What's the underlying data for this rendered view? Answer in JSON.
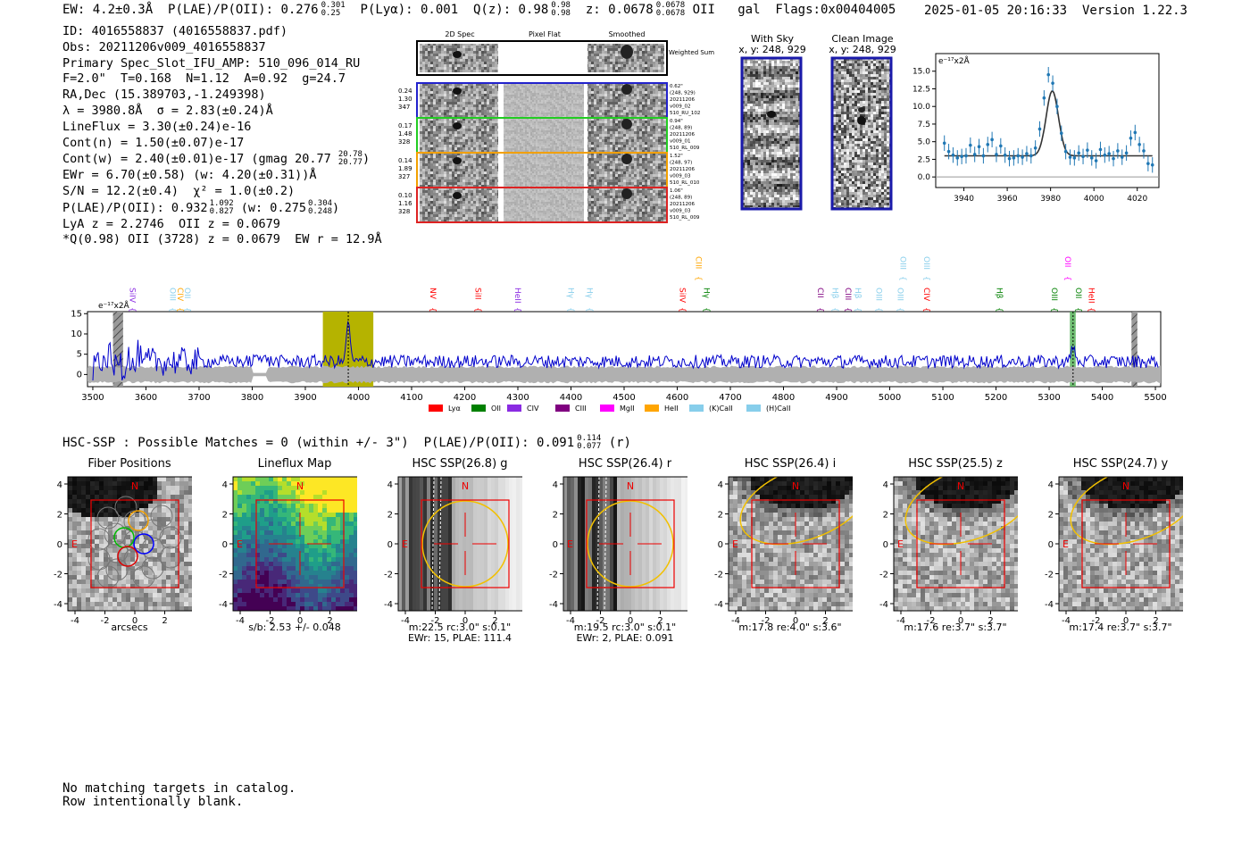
{
  "header": {
    "ew": "EW: 4.2±0.3Å",
    "plae": "P(LAE)/P(OII): 0.276",
    "plae_hi": "0.301",
    "plae_lo": "0.25",
    "plya": "P(Lyα): 0.001",
    "qz": "Q(z): 0.98",
    "qz_hi": "0.98",
    "qz_lo": "0.98",
    "z": "z: 0.0678",
    "z_hi": "0.0678",
    "z_lo": "0.0678",
    "line": "OII",
    "type": "gal",
    "flags": "Flags:0x00404005",
    "datetime": "2025-01-05 20:16:33",
    "version": "Version 1.22.3"
  },
  "info": {
    "lines": [
      "ID: 4016558837 (4016558837.pdf)",
      "Obs: 20211206v009_4016558837",
      "Primary Spec_Slot_IFU_AMP: 510_096_014_RU",
      "F=2.0\"  T=0.168  N=1.12  A=0.92  g=24.7",
      "RA,Dec (15.389703,-1.249398)",
      "λ = 3980.8Å  σ = 2.83(±0.24)Å",
      "LineFlux = 3.30(±0.24)e-16",
      "Cont(n) = 1.50(±0.07)e-17"
    ],
    "contw": "Cont(w) = 2.40(±0.01)e-17 (gmag 20.77",
    "contw_hi": "20.78",
    "contw_lo": "20.77",
    "lines2": [
      "EWr = 6.70(±0.58) (w: 4.20(±0.31))Å",
      "S/N = 12.2(±0.4)  χ² = 1.0(±0.2)"
    ],
    "plae_line": "P(LAE)/P(OII): 0.932",
    "plae_line_hi": "1.092",
    "plae_line_lo": "0.827",
    "plae_w": "(w: 0.275",
    "plae_w_hi": "0.304",
    "plae_w_lo": "0.248",
    "lines3": [
      "LyA z = 2.2746  OII z = 0.0679",
      "*Q(0.98) OII (3728) z = 0.0679  EW r = 12.9Å"
    ]
  },
  "spec2d": {
    "col_labels": [
      "2D Spec",
      "Pixel Flat",
      "Smoothed"
    ],
    "weighted_sum": "Weighted Sum",
    "rows": [
      {
        "left": [
          "0.24",
          "1.30",
          "347"
        ],
        "right": [
          "0.62\"",
          "(248, 929)",
          "20211206",
          "v009_02",
          "510_RU_102"
        ],
        "color": "#2222cc"
      },
      {
        "left": [
          "0.17",
          "1.48",
          "328"
        ],
        "right": [
          "0.94\"",
          "(248, 89)",
          "20211206",
          "v009_01",
          "510_RL_009"
        ],
        "color": "#22cc22"
      },
      {
        "left": [
          "0.14",
          "1.89",
          "327"
        ],
        "right": [
          "1.52\"",
          "(248, 97)",
          "20211206",
          "v009_03",
          "510_RL_010"
        ],
        "color": "#f2a000"
      },
      {
        "left": [
          "0.10",
          "1.16",
          "328"
        ],
        "right": [
          "1.06\"",
          "(248, 89)",
          "20211206",
          "v009_03",
          "510_RL_009"
        ],
        "color": "#dd2222"
      }
    ]
  },
  "sky": {
    "with_sky_title": "With Sky",
    "with_sky_coords": "x, y: 248, 929",
    "clean_title": "Clean Image",
    "clean_coords": "x, y: 248, 929"
  },
  "colors": {
    "spectrum": "#0000cc",
    "fit_points": "#1f77b4",
    "band_olive": "#b5b300",
    "band_green": "#4caf50",
    "error_grey": "#b0b0b0"
  },
  "zoom_chart": {
    "type": "scatter",
    "unit_label": "e⁻¹⁷x2Å",
    "xlim": [
      3927,
      4030
    ],
    "ylim": [
      -1.5,
      17.5
    ],
    "xticks": [
      3940,
      3960,
      3980,
      4000,
      4020
    ],
    "yticks": [
      0.0,
      2.5,
      5.0,
      7.5,
      10.0,
      12.5,
      15.0
    ],
    "points": [
      [
        3931,
        4.8
      ],
      [
        3933,
        3.6
      ],
      [
        3935,
        3.1
      ],
      [
        3937,
        2.7
      ],
      [
        3939,
        2.9
      ],
      [
        3941,
        3.0
      ],
      [
        3943,
        4.5
      ],
      [
        3945,
        3.2
      ],
      [
        3947,
        4.3
      ],
      [
        3949,
        3.0
      ],
      [
        3951,
        4.6
      ],
      [
        3953,
        5.3
      ],
      [
        3955,
        3.2
      ],
      [
        3957,
        4.4
      ],
      [
        3959,
        3.1
      ],
      [
        3961,
        2.6
      ],
      [
        3963,
        2.7
      ],
      [
        3965,
        3.0
      ],
      [
        3967,
        2.8
      ],
      [
        3969,
        3.3
      ],
      [
        3971,
        3.0
      ],
      [
        3973,
        4.1
      ],
      [
        3975,
        6.8
      ],
      [
        3977,
        11.2
      ],
      [
        3979,
        14.5
      ],
      [
        3981,
        13.3
      ],
      [
        3983,
        10.0
      ],
      [
        3985,
        6.2
      ],
      [
        3987,
        3.6
      ],
      [
        3989,
        2.8
      ],
      [
        3991,
        2.7
      ],
      [
        3993,
        3.4
      ],
      [
        3995,
        2.9
      ],
      [
        3997,
        3.8
      ],
      [
        3999,
        2.7
      ],
      [
        4001,
        2.3
      ],
      [
        4003,
        3.9
      ],
      [
        4005,
        3.1
      ],
      [
        4007,
        3.3
      ],
      [
        4009,
        2.6
      ],
      [
        4011,
        3.7
      ],
      [
        4013,
        2.8
      ],
      [
        4015,
        3.4
      ],
      [
        4017,
        5.5
      ],
      [
        4019,
        6.3
      ],
      [
        4021,
        4.6
      ],
      [
        4023,
        3.7
      ],
      [
        4025,
        1.9
      ],
      [
        4027,
        1.7
      ]
    ],
    "model": {
      "continuum": 3.0,
      "amplitude": 9.2,
      "center": 3980.8,
      "sigma": 2.83
    }
  },
  "full_chart": {
    "type": "line",
    "unit_label": "e⁻¹⁷x2Å",
    "xlim": [
      3490,
      5510
    ],
    "ylim": [
      -3,
      15.5
    ],
    "xticks": [
      3500,
      3600,
      3700,
      3800,
      3900,
      4000,
      4100,
      4200,
      4300,
      4400,
      4500,
      4600,
      4700,
      4800,
      4900,
      5000,
      5100,
      5200,
      5300,
      5400,
      5500
    ],
    "yticks": [
      0,
      5,
      10,
      15
    ],
    "highlight_band": [
      3933,
      4028
    ],
    "line_center": 3980.8,
    "green_band": [
      5339,
      5350
    ],
    "hatched_regions": [
      [
        3538,
        3557
      ],
      [
        5455,
        5466
      ]
    ],
    "line_markers": [
      {
        "label": "SiIV",
        "wave": 3565,
        "color": "#8a2be2",
        "level": 1
      },
      {
        "label": "OIII",
        "wave": 3640,
        "color": "#87ceeb",
        "level": 1
      },
      {
        "label": "CIV",
        "wave": 3655,
        "color": "#ffa500",
        "level": 1
      },
      {
        "label": "OII",
        "wave": 3668,
        "color": "#87ceeb",
        "level": 1
      },
      {
        "label": "NV",
        "wave": 4130,
        "color": "#ff0000",
        "level": 1
      },
      {
        "label": "SiII",
        "wave": 4215,
        "color": "#ff0000",
        "level": 1
      },
      {
        "label": "HeII",
        "wave": 4290,
        "color": "#8a2be2",
        "level": 1
      },
      {
        "label": "Hγ",
        "wave": 4390,
        "color": "#87ceeb",
        "level": 1
      },
      {
        "label": "Hγ",
        "wave": 4425,
        "color": "#87ceeb",
        "level": 1
      },
      {
        "label": "SiIV",
        "wave": 4600,
        "color": "#ff0000",
        "level": 1
      },
      {
        "label": "Hγ",
        "wave": 4645,
        "color": "#008000",
        "level": 1
      },
      {
        "label": "CIII",
        "wave": 4630,
        "color": "#ffa500",
        "level": 2
      },
      {
        "label": "CII",
        "wave": 4860,
        "color": "#800080",
        "level": 1
      },
      {
        "label": "Hβ",
        "wave": 4887,
        "color": "#87ceeb",
        "level": 1
      },
      {
        "label": "CIII",
        "wave": 4912,
        "color": "#800080",
        "level": 1
      },
      {
        "label": "Hβ",
        "wave": 4930,
        "color": "#87ceeb",
        "level": 1
      },
      {
        "label": "OIII",
        "wave": 4970,
        "color": "#87ceeb",
        "level": 1
      },
      {
        "label": "OIII",
        "wave": 5010,
        "color": "#87ceeb",
        "level": 1
      },
      {
        "label": "CIV",
        "wave": 5060,
        "color": "#ff0000",
        "level": 1
      },
      {
        "label": "OIII",
        "wave": 5015,
        "color": "#87ceeb",
        "level": 2
      },
      {
        "label": "OIII",
        "wave": 5060,
        "color": "#87ceeb",
        "level": 2
      },
      {
        "label": "Hβ",
        "wave": 5197,
        "color": "#008000",
        "level": 1
      },
      {
        "label": "OIII",
        "wave": 5300,
        "color": "#008000",
        "level": 1
      },
      {
        "label": "OII",
        "wave": 5345,
        "color": "#008000",
        "level": 1
      },
      {
        "label": "HeII",
        "wave": 5370,
        "color": "#ff0000",
        "level": 1
      },
      {
        "label": "OII",
        "wave": 5325,
        "color": "#ff00ff",
        "level": 2
      }
    ],
    "legend": [
      {
        "label": "Lyα",
        "color": "#ff0000"
      },
      {
        "label": "OII",
        "color": "#008000"
      },
      {
        "label": "CIV",
        "color": "#8a2be2"
      },
      {
        "label": "CIII",
        "color": "#800080"
      },
      {
        "label": "MgII",
        "color": "#ff00ff"
      },
      {
        "label": "HeII",
        "color": "#ffa500"
      },
      {
        "label": "(K)CaII",
        "color": "#87ceeb"
      },
      {
        "label": "(H)CaII",
        "color": "#87ceeb"
      }
    ]
  },
  "hsc": {
    "line": "HSC-SSP : Possible Matches = 0 (within +/- 3\")  P(LAE)/P(OII): 0.091",
    "hi": "0.114",
    "lo": "0.077",
    "band": "(r)"
  },
  "stamps": [
    {
      "title": "Fiber Positions",
      "caption": [
        "arcsecs"
      ],
      "kind": "fiber"
    },
    {
      "title": "Lineflux Map",
      "caption": [
        "s/b: 2.53 +/- 0.048"
      ],
      "kind": "flux"
    },
    {
      "title": "HSC SSP(26.8) g",
      "caption": [
        "m:22.5 rc:3.0\"  s:0.1\"",
        "EWr: 15, PLAE: 111.4"
      ],
      "kind": "stripes"
    },
    {
      "title": "HSC SSP(26.4) r",
      "caption": [
        "m:19.5 rc:3.0\"  s:0.1\"",
        "EWr: 2, PLAE: 0.091"
      ],
      "kind": "stripes"
    },
    {
      "title": "HSC SSP(26.4) i",
      "caption": [
        "m:17.8  re:4.0\"  s:3.6\""
      ],
      "kind": "galaxy"
    },
    {
      "title": "HSC SSP(25.5) z",
      "caption": [
        "m:17.6  re:3.7\"  s:3.7\""
      ],
      "kind": "galaxy"
    },
    {
      "title": "HSC SSP(24.7) y",
      "caption": [
        "m:17.4  re:3.7\"  s:3.7\""
      ],
      "kind": "galaxy"
    }
  ],
  "stamp_axes": {
    "ticks": [
      "-4",
      "-2",
      "0",
      "2",
      "4"
    ],
    "north": "N",
    "east": "E"
  },
  "footer": {
    "lines": [
      "No matching targets in catalog.",
      "Row intentionally blank."
    ]
  }
}
